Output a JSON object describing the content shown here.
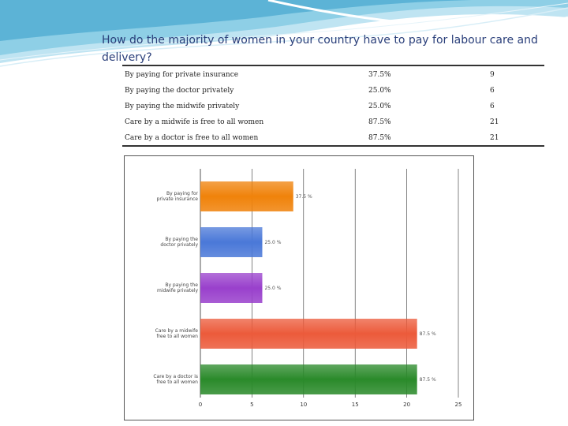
{
  "question": "How do the majority of women in your country have to pay for labour care and delivery?",
  "table": [
    {
      "label": "By paying for private insurance",
      "percent": "37.5%",
      "count": "9"
    },
    {
      "label": "By paying the doctor privately",
      "percent": "25.0%",
      "count": "6"
    },
    {
      "label": "By paying the midwife privately",
      "percent": "25.0%",
      "count": "6"
    },
    {
      "label": "Care by a midwife is free to all women",
      "percent": "87.5%",
      "count": "21"
    },
    {
      "label": "Care by a doctor is free to all women",
      "percent": "87.5%",
      "count": "21"
    }
  ],
  "chart_data": {
    "type": "bar",
    "orientation": "horizontal",
    "categories": [
      [
        "By paying for",
        "private insurance"
      ],
      [
        "By paying the",
        "doctor privately"
      ],
      [
        "By paying the",
        "midwife privately"
      ],
      [
        "Care by a midwife",
        "free to all women"
      ],
      [
        "Care by a doctor is",
        "free to all women"
      ]
    ],
    "values": [
      9,
      6,
      6,
      21,
      21
    ],
    "value_labels": [
      "37.5 %",
      "25.0 %",
      "25.0 %",
      "87.5 %",
      "87.5 %"
    ],
    "colors": [
      "#f0820a",
      "#4a78d8",
      "#9940cc",
      "#ec5a3a",
      "#2a8a2a"
    ],
    "xticks": [
      "0",
      "5",
      "10",
      "15",
      "20",
      "25"
    ],
    "xlim": [
      0,
      25
    ],
    "grid": true
  }
}
